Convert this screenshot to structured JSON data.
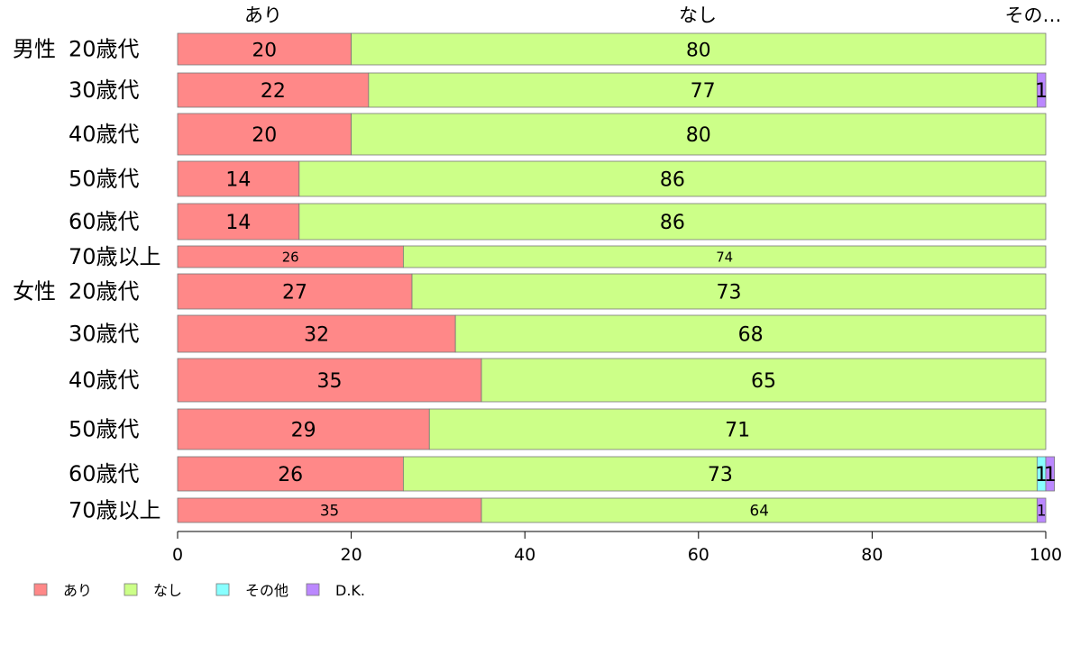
{
  "chart_data": {
    "type": "bar",
    "orientation": "horizontal",
    "stacked": true,
    "title": "",
    "xlabel": "",
    "ylabel": "",
    "xlim": [
      0,
      100
    ],
    "x_ticks": [
      0,
      20,
      40,
      60,
      80,
      100
    ],
    "grid": false,
    "legend_position": "bottom-left",
    "top_labels": [
      "あり",
      "なし",
      "その…"
    ],
    "rows": [
      {
        "group": "男性",
        "category": "20歳代"
      },
      {
        "group": "",
        "category": "30歳代"
      },
      {
        "group": "",
        "category": "40歳代"
      },
      {
        "group": "",
        "category": "50歳代"
      },
      {
        "group": "",
        "category": "60歳代"
      },
      {
        "group": "",
        "category": "70歳以上"
      },
      {
        "group": "女性",
        "category": "20歳代"
      },
      {
        "group": "",
        "category": "30歳代"
      },
      {
        "group": "",
        "category": "40歳代"
      },
      {
        "group": "",
        "category": "50歳代"
      },
      {
        "group": "",
        "category": "60歳代"
      },
      {
        "group": "",
        "category": "70歳以上"
      }
    ],
    "series": [
      {
        "name": "あり",
        "color": "#ff8888",
        "values": [
          20,
          22,
          20,
          14,
          14,
          26,
          27,
          32,
          35,
          29,
          26,
          35
        ]
      },
      {
        "name": "なし",
        "color": "#ccff88",
        "values": [
          80,
          77,
          80,
          86,
          86,
          74,
          73,
          68,
          65,
          71,
          73,
          64
        ]
      },
      {
        "name": "その他",
        "color": "#88ffff",
        "values": [
          0,
          0,
          0,
          0,
          0,
          0,
          0,
          0,
          0,
          0,
          1,
          0
        ]
      },
      {
        "name": "D.K.",
        "color": "#bb88ff",
        "values": [
          0,
          1,
          0,
          0,
          0,
          0,
          0,
          0,
          0,
          0,
          1,
          1
        ]
      }
    ]
  }
}
